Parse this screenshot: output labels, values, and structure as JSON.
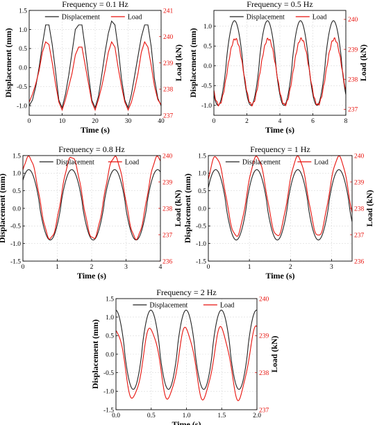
{
  "colors": {
    "displacement": "#222222",
    "load": "#e8120c",
    "right_axis": "#e8120c",
    "grid": "#d9d9d9"
  },
  "chart_data": [
    {
      "type": "line",
      "title": "Frequency = 0.1 Hz",
      "xlabel": "Time (s)",
      "ylabel": "Displacement (mm)",
      "y2label": "Load (kN)",
      "xlim": [
        0,
        40
      ],
      "ylim": [
        -1.25,
        1.5
      ],
      "y2lim": [
        237,
        241
      ],
      "xticks": [
        "0",
        "10",
        "20",
        "30",
        "40"
      ],
      "yticks": [
        "-1.0",
        "-0.5",
        "0.0",
        "0.5",
        "1.0",
        "1.5"
      ],
      "y2ticks": [
        "237",
        "238",
        "239",
        "240",
        "241"
      ],
      "grid": true,
      "legend_position": "top",
      "series": [
        {
          "name": "Displacement",
          "axis": "left",
          "x": [
            0,
            1,
            2,
            3,
            4,
            5,
            6,
            7,
            8,
            9,
            10,
            11,
            12,
            13,
            14,
            15,
            16,
            17,
            18,
            19,
            20,
            21,
            22,
            23,
            24,
            25,
            26,
            27,
            28,
            29,
            30,
            31,
            32,
            33,
            34,
            35,
            36,
            37,
            38,
            39,
            40
          ],
          "y": [
            -1.0,
            -0.85,
            -0.5,
            0.0,
            0.6,
            1.12,
            1.12,
            0.6,
            -0.1,
            -0.85,
            -1.05,
            -0.7,
            -0.2,
            0.4,
            1.0,
            1.12,
            1.12,
            0.5,
            -0.2,
            -0.85,
            -1.05,
            -0.75,
            -0.2,
            0.4,
            0.9,
            1.22,
            1.12,
            0.5,
            -0.3,
            -0.85,
            -1.05,
            -0.7,
            -0.2,
            0.3,
            0.8,
            1.12,
            1.12,
            0.55,
            -0.3,
            -0.8,
            -1.0
          ]
        },
        {
          "name": "Load",
          "axis": "right",
          "x": [
            0,
            1,
            2,
            3,
            4,
            5,
            6,
            7,
            8,
            9,
            10,
            11,
            12,
            13,
            14,
            15,
            16,
            17,
            18,
            19,
            20,
            21,
            22,
            23,
            24,
            25,
            26,
            27,
            28,
            29,
            30,
            31,
            32,
            33,
            34,
            35,
            36,
            37,
            38,
            39,
            40
          ],
          "y": [
            237.5,
            237.8,
            238.2,
            238.7,
            239.4,
            239.8,
            239.7,
            239.0,
            238.2,
            237.5,
            237.2,
            237.6,
            238.1,
            238.6,
            239.3,
            239.6,
            239.6,
            238.9,
            238.2,
            237.5,
            237.2,
            237.6,
            238.1,
            238.7,
            239.4,
            239.8,
            239.6,
            238.8,
            238.1,
            237.5,
            237.2,
            237.5,
            238.0,
            238.6,
            239.4,
            239.8,
            239.6,
            238.9,
            238.1,
            237.6,
            237.4
          ]
        }
      ]
    },
    {
      "type": "line",
      "title": "Frequency = 0.5 Hz",
      "xlabel": "Time (s)",
      "ylabel": "Displacement (mm)",
      "y2label": "Load (kN)",
      "xlim": [
        0,
        8
      ],
      "ylim": [
        -1.25,
        1.4
      ],
      "y2lim": [
        236.8,
        240.3
      ],
      "xticks": [
        "0",
        "2",
        "4",
        "6",
        "8"
      ],
      "yticks": [
        "-1.0",
        "-0.5",
        "0.0",
        "0.5",
        "1.0"
      ],
      "y2ticks": [
        "237",
        "238",
        "239",
        "240"
      ],
      "grid": true,
      "legend_position": "top",
      "series": [
        {
          "name": "Displacement",
          "axis": "left",
          "x": [
            0,
            8
          ],
          "y": [
            -0.5,
            -0.6
          ]
        },
        {
          "name": "Load",
          "axis": "right",
          "x": [
            0,
            8
          ],
          "y": [
            237.6,
            237.6
          ]
        }
      ]
    },
    {
      "type": "line",
      "title": "Frequency = 0.8 Hz",
      "xlabel": "Time (s)",
      "ylabel": "Displacement (mm)",
      "y2label": "Load (kN)",
      "xlim": [
        0,
        4
      ],
      "ylim": [
        -1.5,
        1.5
      ],
      "y2lim": [
        236,
        240
      ],
      "xticks": [
        "0",
        "1",
        "2",
        "3",
        "4"
      ],
      "yticks": [
        "-1.5",
        "-1.0",
        "-0.5",
        "0.0",
        "0.5",
        "1.0",
        "1.5"
      ],
      "y2ticks": [
        "236",
        "237",
        "238",
        "239",
        "240"
      ],
      "grid": true,
      "legend_position": "top",
      "series": [
        {
          "name": "Displacement",
          "axis": "left",
          "x": [
            0,
            4
          ],
          "y": [
            0.8,
            0.9
          ]
        },
        {
          "name": "Load",
          "axis": "right",
          "x": [
            0,
            4
          ],
          "y": [
            239.0,
            239.2
          ]
        }
      ]
    },
    {
      "type": "line",
      "title": "Frequency = 1 Hz",
      "xlabel": "Time (s)",
      "ylabel": "Displacement (mm)",
      "y2label": "Load (kN)",
      "xlim": [
        0,
        3.5
      ],
      "ylim": [
        -1.5,
        1.5
      ],
      "y2lim": [
        236,
        240
      ],
      "xticks": [
        "0",
        "1",
        "2",
        "3"
      ],
      "yticks": [
        "-1.5",
        "-1.0",
        "-0.5",
        "0.0",
        "0.5",
        "1.0",
        "1.5"
      ],
      "y2ticks": [
        "236",
        "237",
        "238",
        "239",
        "240"
      ],
      "grid": true,
      "legend_position": "top",
      "series": [
        {
          "name": "Displacement",
          "axis": "left",
          "x": [
            0,
            3.5
          ],
          "y": [
            0.7,
            -0.1
          ]
        },
        {
          "name": "Load",
          "axis": "right",
          "x": [
            0,
            3.5
          ],
          "y": [
            238.9,
            238.0
          ]
        }
      ]
    },
    {
      "type": "line",
      "title": "Frequency = 2 Hz",
      "xlabel": "Time (s)",
      "ylabel": "Displacement (mm)",
      "y2label": "Load (kN)",
      "xlim": [
        0,
        2
      ],
      "ylim": [
        -1.5,
        1.5
      ],
      "y2lim": [
        237,
        240
      ],
      "xticks": [
        "0.0",
        "0.5",
        "1.0",
        "1.5",
        "2.0"
      ],
      "yticks": [
        "-1.5",
        "-1.0",
        "-0.5",
        "0.0",
        "0.5",
        "1.0",
        "1.5"
      ],
      "y2ticks": [
        "237",
        "238",
        "239",
        "240"
      ],
      "grid": true,
      "legend_position": "top",
      "series": [
        {
          "name": "Displacement",
          "axis": "left",
          "x": [
            0,
            2
          ],
          "y": [
            0.9,
            1.0
          ]
        },
        {
          "name": "Load",
          "axis": "right",
          "x": [
            0,
            2
          ],
          "y": [
            238.7,
            238.8
          ]
        }
      ]
    }
  ]
}
